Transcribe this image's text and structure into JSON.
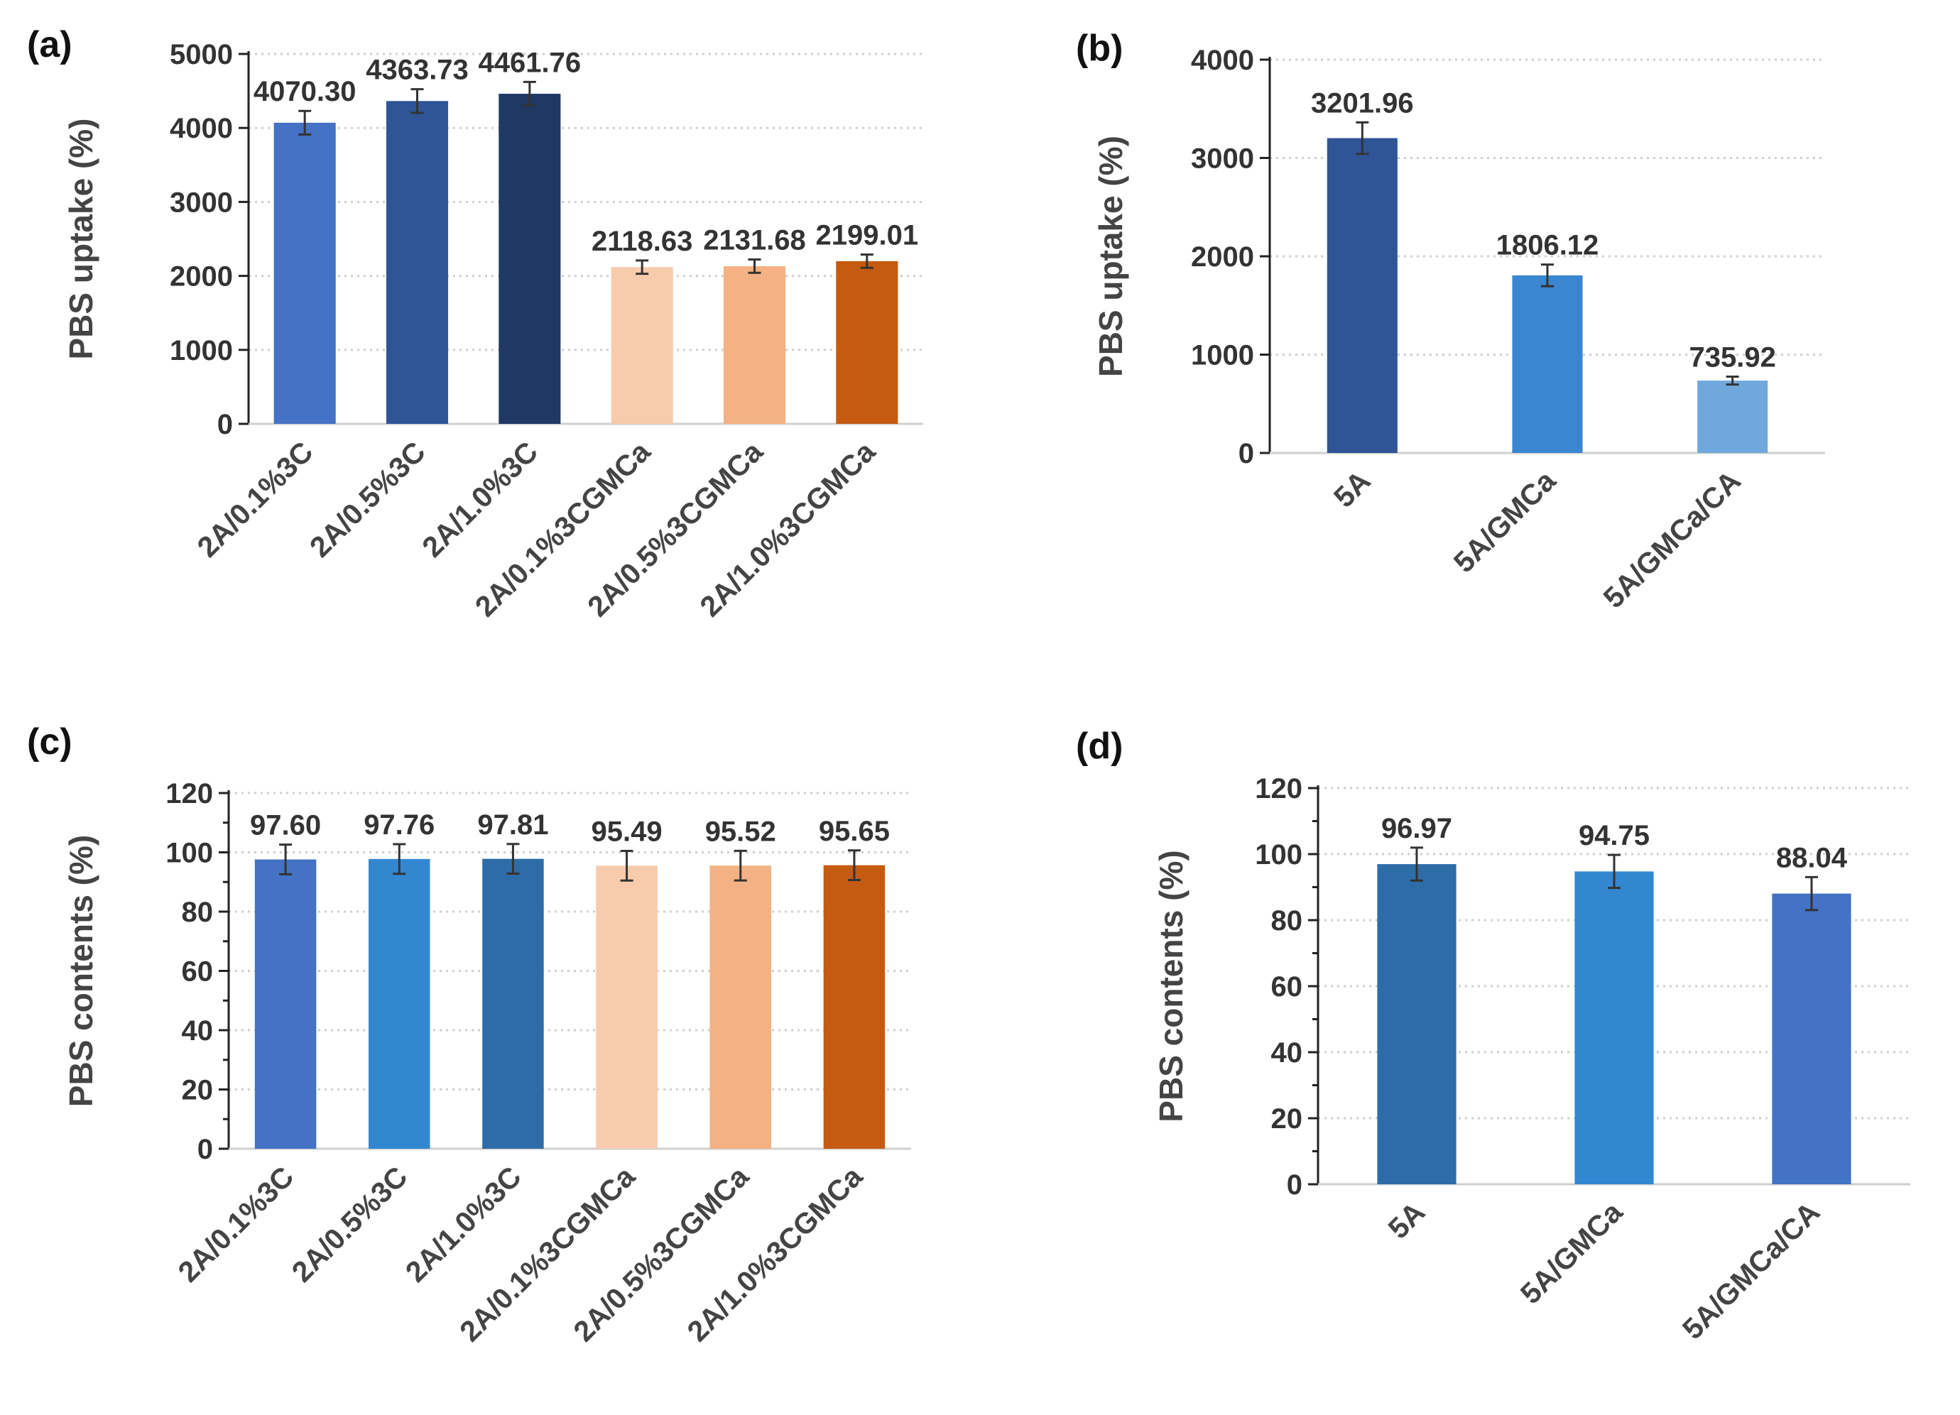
{
  "chart_data": [
    {
      "id": "a",
      "type": "bar",
      "panel_label": "(a)",
      "ylabel": "PBS uptake (%)",
      "xlabel": "",
      "ylim": [
        0,
        5000
      ],
      "ytick_step": 1000,
      "grid": true,
      "categories": [
        "2A/0.1%3C",
        "2A/0.5%3C",
        "2A/1.0%3C",
        "2A/0.1%3CGMCa",
        "2A/0.5%3CGMCa",
        "2A/1.0%3CGMCa"
      ],
      "values": [
        4070.3,
        4363.73,
        4461.76,
        2118.63,
        2131.68,
        2199.01
      ],
      "value_labels": [
        "4070.30",
        "4363.73",
        "4461.76",
        "2118.63",
        "2131.68",
        "2199.01"
      ],
      "errors": [
        160,
        160,
        160,
        90,
        90,
        90
      ],
      "colors": [
        "#4472C4",
        "#2F5597",
        "#203864",
        "#F8CBAD",
        "#F4B183",
        "#C55A11"
      ]
    },
    {
      "id": "b",
      "type": "bar",
      "panel_label": "(b)",
      "ylabel": "PBS uptake (%)",
      "xlabel": "",
      "ylim": [
        0,
        4000
      ],
      "ytick_step": 1000,
      "grid": true,
      "categories": [
        "5A",
        "5A/GMCa",
        "5A/GMCa/CA"
      ],
      "values": [
        3201.96,
        1806.12,
        735.92
      ],
      "value_labels": [
        "3201.96",
        "1806.12",
        "735.92"
      ],
      "errors": [
        160,
        110,
        40
      ],
      "colors": [
        "#2F5597",
        "#3A86D0",
        "#6FA8DC"
      ]
    },
    {
      "id": "c",
      "type": "bar",
      "panel_label": "(c)",
      "ylabel": "PBS contents (%)",
      "xlabel": "",
      "ylim": [
        0,
        120
      ],
      "ytick_step": 20,
      "grid": true,
      "categories": [
        "2A/0.1%3C",
        "2A/0.5%3C",
        "2A/1.0%3C",
        "2A/0.1%3CGMCa",
        "2A/0.5%3CGMCa",
        "2A/1.0%3CGMCa"
      ],
      "values": [
        97.6,
        97.76,
        97.81,
        95.49,
        95.52,
        95.65
      ],
      "value_labels": [
        "97.60",
        "97.76",
        "97.81",
        "95.49",
        "95.52",
        "95.65"
      ],
      "errors": [
        5,
        5,
        5,
        5,
        5,
        5
      ],
      "colors": [
        "#4472C4",
        "#3387D0",
        "#2E6CA8",
        "#F8CBAD",
        "#F4B183",
        "#C55A11"
      ]
    },
    {
      "id": "d",
      "type": "bar",
      "panel_label": "(d)",
      "ylabel": "PBS contents (%)",
      "xlabel": "",
      "ylim": [
        0,
        120
      ],
      "ytick_step": 20,
      "grid": true,
      "categories": [
        "5A",
        "5A/GMCa",
        "5A/GMCa/CA"
      ],
      "values": [
        96.97,
        94.75,
        88.04
      ],
      "value_labels": [
        "96.97",
        "94.75",
        "88.04"
      ],
      "errors": [
        5,
        5,
        5
      ],
      "colors": [
        "#2E6CA8",
        "#3387D0",
        "#4472C4"
      ]
    }
  ]
}
